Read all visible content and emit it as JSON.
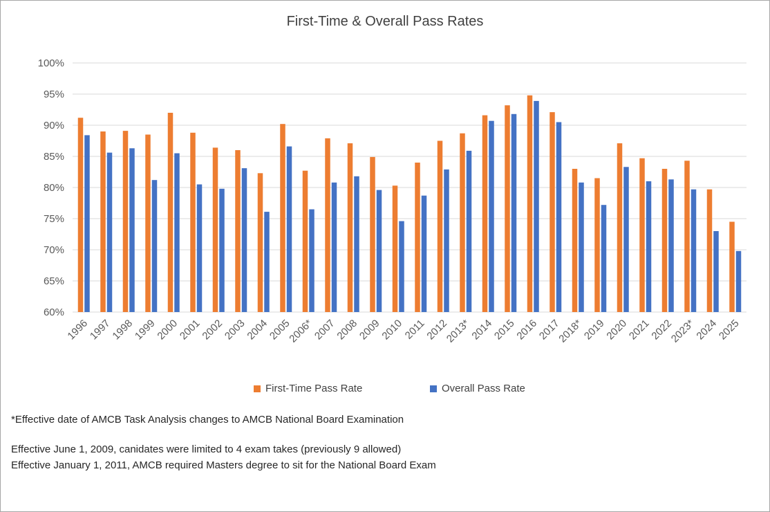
{
  "chart_data": {
    "type": "bar",
    "title": "First-Time & Overall Pass Rates",
    "xlabel": "",
    "ylabel": "",
    "ylim": [
      60,
      100
    ],
    "y_ticks": [
      60,
      65,
      70,
      75,
      80,
      85,
      90,
      95,
      100
    ],
    "y_tick_labels": [
      "60%",
      "65%",
      "70%",
      "75%",
      "80%",
      "85%",
      "90%",
      "95%",
      "100%"
    ],
    "grid": true,
    "legend_position": "bottom",
    "categories": [
      "1996",
      "1997",
      "1998",
      "1999",
      "2000",
      "2001",
      "2002",
      "2003",
      "2004",
      "2005",
      "2006*",
      "2007",
      "2008",
      "2009",
      "2010",
      "2011",
      "2012",
      "2013*",
      "2014",
      "2015",
      "2016",
      "2017",
      "2018*",
      "2019",
      "2020",
      "2021",
      "2022",
      "2023*",
      "2024",
      "2025"
    ],
    "series": [
      {
        "name": "First-Time Pass Rate",
        "color": "#ED7D31",
        "values": [
          91.2,
          89.0,
          89.1,
          88.5,
          92.0,
          88.8,
          86.4,
          86.0,
          82.3,
          90.2,
          82.7,
          87.9,
          87.1,
          84.9,
          80.3,
          84.0,
          87.5,
          88.7,
          91.6,
          93.2,
          94.8,
          92.1,
          83.0,
          81.5,
          87.1,
          84.7,
          83.0,
          84.3,
          79.7,
          74.5
        ]
      },
      {
        "name": "Overall Pass Rate",
        "color": "#4472C4",
        "values": [
          88.4,
          85.6,
          86.3,
          81.2,
          85.5,
          80.5,
          79.8,
          83.1,
          76.1,
          86.6,
          76.5,
          80.8,
          81.8,
          79.6,
          74.6,
          78.7,
          82.9,
          85.9,
          90.7,
          91.8,
          93.9,
          90.5,
          80.8,
          77.2,
          83.3,
          81.0,
          81.3,
          79.7,
          73.0,
          69.8
        ]
      }
    ]
  },
  "notes": {
    "line1": "*Effective date of AMCB Task Analysis changes to AMCB National Board Examination",
    "line2": "Effective June 1, 2009, canidates were limited to 4 exam takes (previously 9 allowed)",
    "line3": "Effective January 1, 2011, AMCB required Masters degree to sit for the National Board Exam"
  }
}
